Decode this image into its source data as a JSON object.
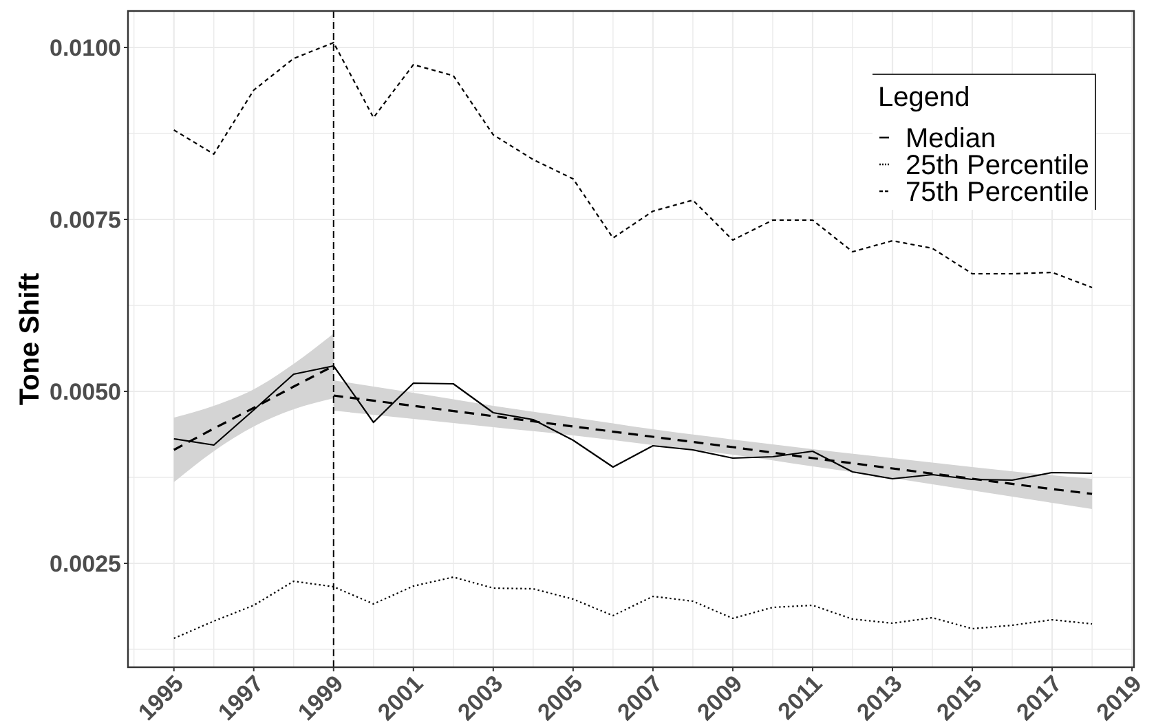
{
  "chart_data": {
    "type": "line",
    "ylabel": "Tone Shift",
    "legend_title": "Legend",
    "legend": "top right",
    "grid": true,
    "x": [
      1995,
      1996,
      1997,
      1998,
      1999,
      2000,
      2001,
      2002,
      2003,
      2004,
      2005,
      2006,
      2007,
      2008,
      2009,
      2010,
      2011,
      2012,
      2013,
      2014,
      2015,
      2016,
      2017,
      2018
    ],
    "xlim": [
      1993.85,
      2019.05
    ],
    "xticks": [
      {
        "value": 1994,
        "label": null
      },
      1995,
      {
        "value": 1996,
        "label": null
      },
      1997,
      {
        "value": 1998,
        "label": null
      },
      1999,
      {
        "value": 2000,
        "label": null
      },
      2001,
      {
        "value": 2002,
        "label": null
      },
      2003,
      {
        "value": 2004,
        "label": null
      },
      2005,
      {
        "value": 2006,
        "label": null
      },
      2007,
      {
        "value": 2008,
        "label": null
      },
      2009,
      {
        "value": 2010,
        "label": null
      },
      2011,
      {
        "value": 2012,
        "label": null
      },
      2013,
      {
        "value": 2014,
        "label": null
      },
      2015,
      {
        "value": 2016,
        "label": null
      },
      2017,
      {
        "value": 2018,
        "label": null
      },
      2019
    ],
    "ylim": [
      0.00099,
      0.01053
    ],
    "yticks": [
      {
        "value": 0.00125,
        "label": null
      },
      0.0025,
      {
        "value": 0.00375,
        "label": null
      },
      {
        "value": 0.005,
        "label": "0.0050"
      },
      {
        "value": 0.00625,
        "label": null
      },
      0.0075,
      {
        "value": 0.00875,
        "label": null
      },
      {
        "value": 0.01,
        "label": "0.0100"
      }
    ],
    "series": [
      {
        "color": "#000000",
        "line_style": "dashed",
        "x": [
          1995,
          1996,
          1997,
          1998,
          1999
        ],
        "values": [
          0.00415,
          0.00446,
          0.00476,
          0.00507,
          0.00537
        ],
        "lower": [
          0.00368,
          0.00413,
          0.00449,
          0.00474,
          0.0049
        ],
        "upper": [
          0.00462,
          0.00479,
          0.00503,
          0.0054,
          0.00584
        ]
      },
      {
        "color": "#000000",
        "line_style": "dashed",
        "x": [
          1999,
          2001,
          2003,
          2005,
          2007,
          2009,
          2011,
          2013,
          2015,
          2017,
          2018
        ],
        "values": [
          0.00494,
          0.00479,
          0.00464,
          0.00449,
          0.00434,
          0.00419,
          0.00403,
          0.00388,
          0.00373,
          0.00358,
          0.00351
        ],
        "lower": [
          0.00472,
          0.0046,
          0.00448,
          0.00436,
          0.00422,
          0.00408,
          0.00391,
          0.00374,
          0.00356,
          0.00338,
          0.00329
        ],
        "upper": [
          0.00516,
          0.00498,
          0.00479,
          0.00462,
          0.00445,
          0.0043,
          0.00416,
          0.00403,
          0.0039,
          0.00378,
          0.00373
        ]
      },
      {
        "name": "Median",
        "color": "#000000",
        "line_style": "solid",
        "values": [
          0.00431,
          0.00422,
          0.00473,
          0.00525,
          0.00537,
          0.00455,
          0.00512,
          0.00511,
          0.00469,
          0.00459,
          0.00429,
          0.0039,
          0.00421,
          0.00415,
          0.00403,
          0.00405,
          0.00413,
          0.00383,
          0.00373,
          0.00379,
          0.00372,
          0.00371,
          0.00382,
          0.00381
        ]
      },
      {
        "name": "25th Percentile",
        "color": "#000000",
        "line_style": "dotted",
        "values": [
          0.00141,
          0.00166,
          0.00189,
          0.00224,
          0.00216,
          0.00191,
          0.00217,
          0.0023,
          0.00214,
          0.00213,
          0.00198,
          0.00174,
          0.00202,
          0.00195,
          0.0017,
          0.00186,
          0.00189,
          0.00169,
          0.00163,
          0.00171,
          0.00155,
          0.0016,
          0.00168,
          0.00162
        ]
      },
      {
        "name": "75th Percentile",
        "color": "#000000",
        "line_style": "dashed",
        "values": [
          0.0088,
          0.00845,
          0.00938,
          0.00984,
          0.01007,
          0.00898,
          0.00975,
          0.00959,
          0.00873,
          0.00837,
          0.00809,
          0.00723,
          0.00762,
          0.00778,
          0.0072,
          0.00749,
          0.00749,
          0.00703,
          0.00719,
          0.00708,
          0.00671,
          0.00671,
          0.00673,
          0.00651
        ]
      }
    ],
    "ref_lines": [
      {
        "axis": "x",
        "value": 1999,
        "line_style": "dashed",
        "color": "#000000"
      }
    ]
  }
}
